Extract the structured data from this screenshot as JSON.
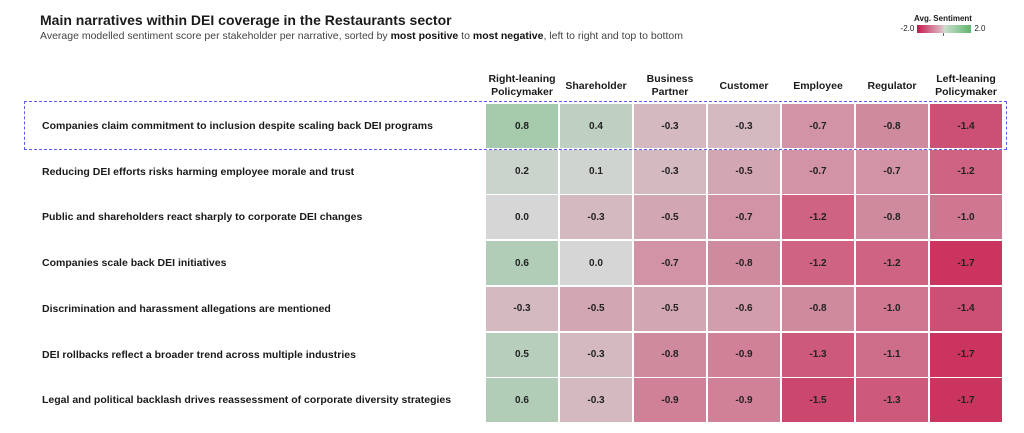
{
  "chart_data": {
    "type": "heatmap",
    "title": "Main narratives within DEI coverage in the Restaurants sector",
    "subtitle": {
      "prefix": "Average modelled sentiment score per stakeholder per narrative, sorted by ",
      "bold1": "most positive",
      "mid": " to ",
      "bold2": "most negative",
      "suffix": ", left to right and top to bottom"
    },
    "legend": {
      "title": "Avg. Sentiment",
      "min_label": "-2.0",
      "max_label": "2.0",
      "range": [
        -2.0,
        2.0
      ]
    },
    "columns": [
      "Right-leaning Policymaker",
      "Shareholder",
      "Business Partner",
      "Customer",
      "Employee",
      "Regulator",
      "Left-leaning Policymaker"
    ],
    "rows": [
      "Companies claim commitment to inclusion despite scaling back DEI programs",
      "Reducing DEI efforts risks harming employee morale and trust",
      "Public and shareholders react sharply to corporate DEI changes",
      "Companies scale back DEI initiatives",
      "Discrimination and harassment allegations are mentioned",
      "DEI rollbacks reflect a broader trend across multiple industries",
      "Legal and political backlash drives reassessment of corporate diversity strategies"
    ],
    "values": [
      [
        0.8,
        0.4,
        -0.3,
        -0.3,
        -0.7,
        -0.8,
        -1.4
      ],
      [
        0.2,
        0.1,
        -0.3,
        -0.5,
        -0.7,
        -0.7,
        -1.2
      ],
      [
        0.0,
        -0.3,
        -0.5,
        -0.7,
        -1.2,
        -0.8,
        -1.0
      ],
      [
        0.6,
        0.0,
        -0.7,
        -0.8,
        -1.2,
        -1.2,
        -1.7
      ],
      [
        -0.3,
        -0.5,
        -0.5,
        -0.6,
        -0.8,
        -1.0,
        -1.4
      ],
      [
        0.5,
        -0.3,
        -0.8,
        -0.9,
        -1.3,
        -1.1,
        -1.7
      ],
      [
        0.6,
        -0.3,
        -0.9,
        -0.9,
        -1.5,
        -1.3,
        -1.7
      ]
    ],
    "highlighted_row": 0,
    "colors": {
      "negative": "#c8174a",
      "neutral": "#d6d6d6",
      "positive": "#5db76e"
    }
  }
}
